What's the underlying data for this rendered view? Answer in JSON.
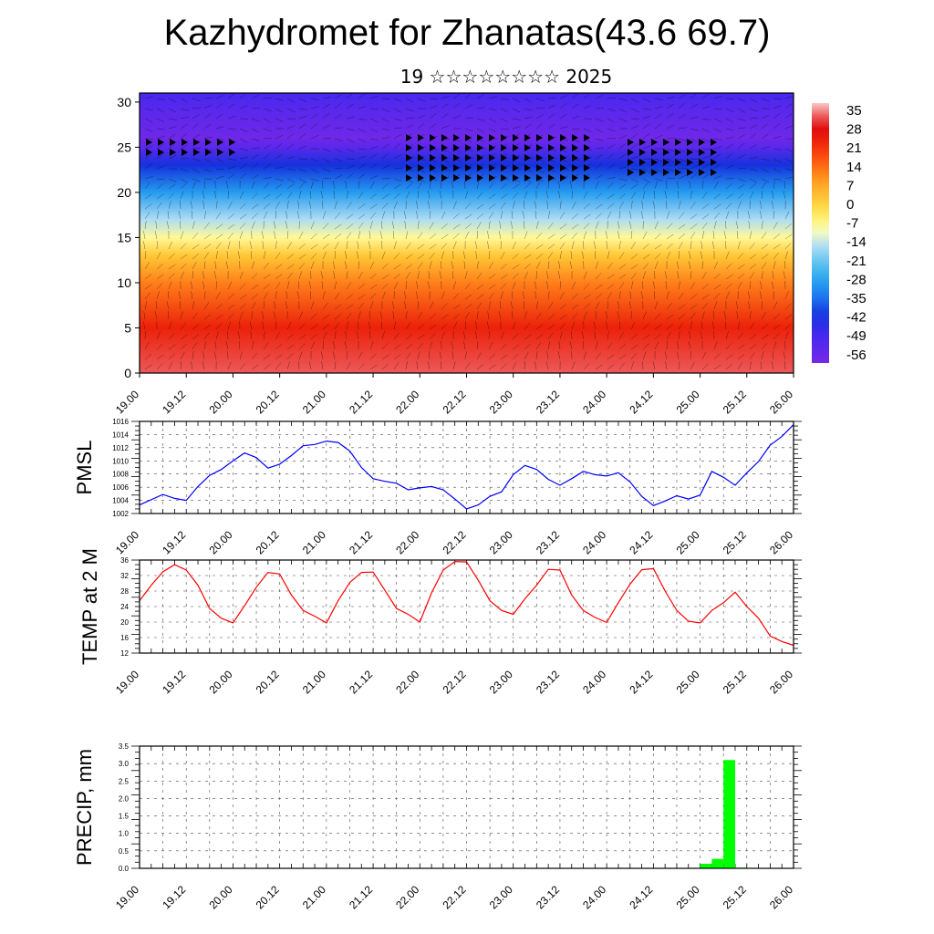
{
  "title": "Kazhydromet for Zhanatas(43.6 69.7)",
  "subtitle": "19 ☆☆☆☆☆☆☆☆ 2025",
  "time_ticks": [
    "19.00",
    "19.12",
    "20.00",
    "20.12",
    "21.00",
    "21.12",
    "22.00",
    "22.12",
    "23.00",
    "23.12",
    "24.00",
    "24.12",
    "25.00",
    "25.12",
    "26.00"
  ],
  "chart_data": [
    {
      "type": "heatmap",
      "name": "upper-air cross-section",
      "title": "",
      "xlabel": "",
      "ylabel": "",
      "x_ticks": [
        "19.00",
        "19.12",
        "20.00",
        "20.12",
        "21.00",
        "21.12",
        "22.00",
        "22.12",
        "23.00",
        "23.12",
        "24.00",
        "24.12",
        "25.00",
        "25.12",
        "26.00"
      ],
      "y_ticks": [
        0,
        5,
        10,
        15,
        20,
        25,
        30
      ],
      "ylim": [
        0,
        31
      ],
      "colorbar_labels": [
        "35",
        "28",
        "21",
        "14",
        "7",
        "0",
        "-7",
        "-14",
        "-21",
        "-28",
        "-35",
        "-42",
        "-49",
        "-56"
      ],
      "colorbar_range": [
        -60,
        38
      ],
      "temperature_by_height": [
        {
          "height": 0,
          "value": 33
        },
        {
          "height": 5,
          "value": 24
        },
        {
          "height": 10,
          "value": 12
        },
        {
          "height": 13,
          "value": 2
        },
        {
          "height": 15,
          "value": -8
        },
        {
          "height": 17,
          "value": -16
        },
        {
          "height": 20,
          "value": -30
        },
        {
          "height": 23,
          "value": -42
        },
        {
          "height": 25,
          "value": -54
        },
        {
          "height": 26,
          "value": -58
        },
        {
          "height": 29,
          "value": -54
        },
        {
          "height": 31,
          "value": -50
        }
      ],
      "colors": {
        "warm": "#e00000",
        "cold": "#6020e0",
        "neutral": "#ffff80"
      }
    },
    {
      "type": "line",
      "title": "",
      "ylabel": "PMSL",
      "ylim": [
        1002,
        1016
      ],
      "y_ticks": [
        1002,
        1004,
        1006,
        1008,
        1010,
        1012,
        1014,
        1016
      ],
      "x_ticks": [
        "19.00",
        "19.12",
        "20.00",
        "20.12",
        "21.00",
        "21.12",
        "22.00",
        "22.12",
        "23.00",
        "23.12",
        "24.00",
        "24.12",
        "25.00",
        "25.12",
        "26.00"
      ],
      "x_unit": "hours from 19.00",
      "color": "#0000ff",
      "series": [
        {
          "x": [
            0,
            6,
            9,
            12,
            15,
            18,
            21,
            24,
            27,
            30,
            33,
            36,
            39,
            42,
            45,
            48,
            51,
            54,
            57,
            60,
            63,
            66,
            69,
            72,
            75,
            78,
            81,
            84,
            87,
            90,
            93,
            96,
            99,
            102,
            105,
            108,
            111,
            114,
            117,
            120,
            123,
            126,
            129,
            132,
            135,
            138,
            141,
            144,
            147,
            150,
            153,
            156,
            159,
            162,
            165,
            168
          ],
          "values": [
            1003.3,
            1004.9,
            1004.3,
            1004.0,
            1006.1,
            1007.8,
            1008.7,
            1010.0,
            1011.2,
            1010.5,
            1008.9,
            1009.5,
            1010.8,
            1012.3,
            1012.5,
            1013.0,
            1012.8,
            1011.5,
            1009.0,
            1007.3,
            1006.9,
            1006.6,
            1005.6,
            1005.9,
            1006.1,
            1005.6,
            1004.2,
            1002.7,
            1003.3,
            1004.6,
            1005.3,
            1007.9,
            1009.3,
            1008.7,
            1007.2,
            1006.3,
            1007.3,
            1008.4,
            1007.9,
            1007.7,
            1008.2,
            1006.8,
            1004.6,
            1003.2,
            1003.9,
            1004.7,
            1004.2,
            1004.8,
            1008.4,
            1007.5,
            1006.3,
            1008.2,
            1009.9,
            1012.4,
            1013.7,
            1015.5
          ]
        }
      ]
    },
    {
      "type": "line",
      "title": "",
      "ylabel": "TEMP at 2 M",
      "ylim": [
        12,
        36
      ],
      "y_ticks": [
        12,
        16,
        20,
        24,
        28,
        32,
        36
      ],
      "x_ticks": [
        "19.00",
        "19.12",
        "20.00",
        "20.12",
        "21.00",
        "21.12",
        "22.00",
        "22.12",
        "23.00",
        "23.12",
        "24.00",
        "24.12",
        "25.00",
        "25.12",
        "26.00"
      ],
      "x_unit": "hours from 19.00",
      "color": "#ff0000",
      "series": [
        {
          "x": [
            0,
            3,
            6,
            9,
            12,
            15,
            18,
            21,
            24,
            27,
            30,
            33,
            36,
            39,
            42,
            45,
            48,
            51,
            54,
            57,
            60,
            63,
            66,
            69,
            72,
            75,
            78,
            81,
            84,
            87,
            90,
            93,
            96,
            99,
            102,
            105,
            108,
            111,
            114,
            117,
            120,
            123,
            126,
            129,
            132,
            135,
            138,
            141,
            144,
            147,
            150,
            153,
            156,
            159,
            162,
            165,
            168
          ],
          "values": [
            25.5,
            29.5,
            33.0,
            34.8,
            33.4,
            29.5,
            23.5,
            21.0,
            19.8,
            24.2,
            29.0,
            32.8,
            32.4,
            27.0,
            23.0,
            21.5,
            19.8,
            25.5,
            30.2,
            32.8,
            32.9,
            28.2,
            23.5,
            22.0,
            20.0,
            27.5,
            33.4,
            35.6,
            35.5,
            30.8,
            25.5,
            23.0,
            22.0,
            26.0,
            29.5,
            33.6,
            33.4,
            27.0,
            23.0,
            21.2,
            19.9,
            25.0,
            29.8,
            33.5,
            33.8,
            28.0,
            23.0,
            20.2,
            19.8,
            23.0,
            25.0,
            27.7,
            24.0,
            21.0,
            16.4,
            15.0,
            14.0
          ]
        }
      ]
    },
    {
      "type": "bar",
      "title": "",
      "ylabel": "PRECIP, mm",
      "ylim": [
        0,
        3.5
      ],
      "y_ticks": [
        "0.0",
        "0.5",
        "1.0",
        "1.5",
        "2.0",
        "2.5",
        "3.0",
        "3.5"
      ],
      "x_ticks": [
        "19.00",
        "19.12",
        "20.00",
        "20.12",
        "21.00",
        "21.12",
        "22.00",
        "22.12",
        "23.00",
        "23.12",
        "24.00",
        "24.12",
        "25.00",
        "25.12",
        "26.00"
      ],
      "x_unit": "hours from 19.00",
      "color": "#00ff00",
      "bar_width_hours": 3,
      "series": [
        {
          "x": [
            144,
            147,
            150,
            153
          ],
          "values": [
            0.13,
            0.27,
            3.1,
            0.02
          ]
        }
      ]
    }
  ]
}
